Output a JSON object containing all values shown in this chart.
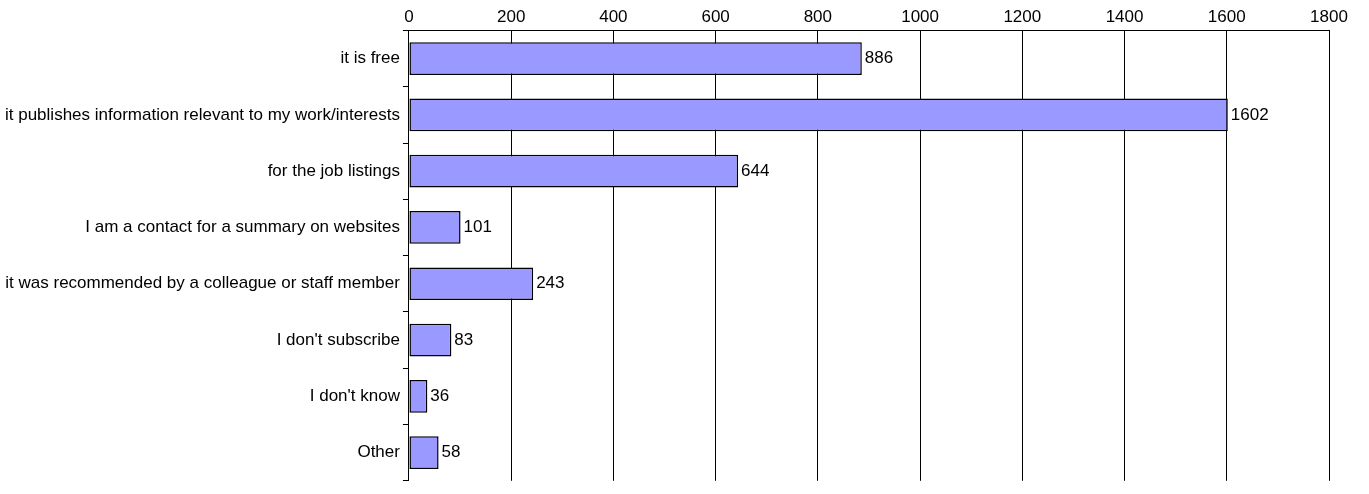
{
  "chart_data": {
    "type": "bar",
    "orientation": "horizontal",
    "categories": [
      "it is free",
      "it publishes information relevant to my work/interests",
      "for the job listings",
      "I am a contact for a summary on websites",
      "it was recommended by a colleague or staff member",
      "I don't subscribe",
      "I don't know",
      "Other"
    ],
    "values": [
      886,
      1602,
      644,
      101,
      243,
      83,
      36,
      58
    ],
    "color": "#9999ff",
    "xlim": [
      0,
      1800
    ],
    "xticks": [
      0,
      200,
      400,
      600,
      800,
      1000,
      1200,
      1400,
      1600,
      1800
    ],
    "grid": "x",
    "legend": false,
    "data_labels": true
  }
}
